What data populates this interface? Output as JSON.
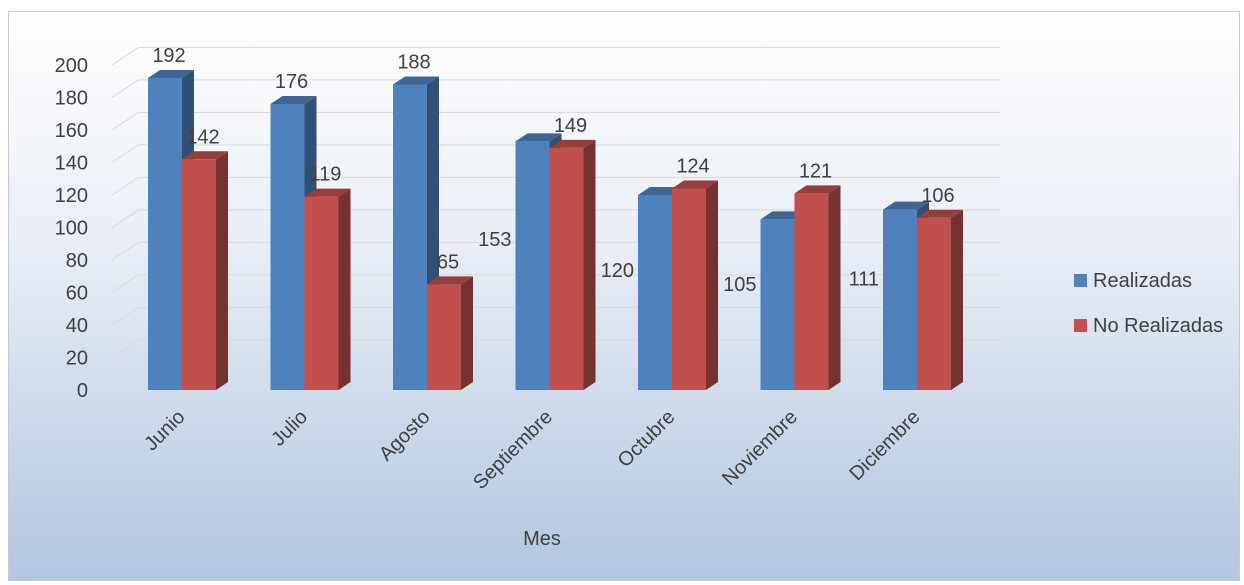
{
  "chart_data": {
    "type": "bar",
    "categories": [
      "Junio",
      "Julio",
      "Agosto",
      "Septiembre",
      "Octubre",
      "Noviembre",
      "Diciembre"
    ],
    "series": [
      {
        "name": "Realizadas",
        "values": [
          192,
          176,
          188,
          153,
          120,
          105,
          111
        ],
        "color": "#4f81bd"
      },
      {
        "name": "No Realizadas",
        "values": [
          142,
          119,
          65,
          149,
          124,
          121,
          106
        ],
        "color": "#c0504d"
      }
    ],
    "title": "",
    "xlabel": "Mes",
    "ylabel": "",
    "ylim": [
      0,
      200
    ],
    "yticks": [
      0,
      20,
      40,
      60,
      80,
      100,
      120,
      140,
      160,
      180,
      200
    ],
    "grid": true,
    "style": "3d-clustered-column",
    "legend_position": "right"
  }
}
